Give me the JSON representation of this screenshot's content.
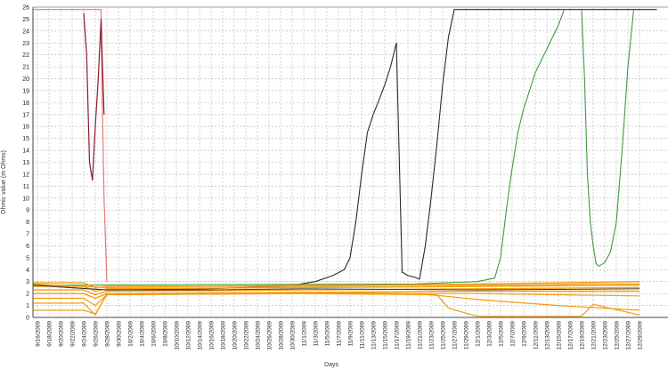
{
  "chart_data": {
    "type": "line",
    "title": "",
    "xlabel": "Days",
    "ylabel": "Ohmic value (m Ohms)",
    "ylim": [
      0,
      26
    ],
    "yticks": [
      0,
      1,
      2,
      3,
      4,
      5,
      6,
      7,
      8,
      9,
      10,
      11,
      12,
      13,
      14,
      15,
      16,
      17,
      18,
      19,
      20,
      21,
      22,
      23,
      24,
      25,
      26
    ],
    "grid": true,
    "legend": "none",
    "x_tick_labels": [
      "9/16/2009",
      "9/18/2009",
      "9/20/2009",
      "9/22/2009",
      "9/24/2009",
      "9/26/2009",
      "9/28/2009",
      "9/30/2009",
      "10/2/2009",
      "10/4/2009",
      "10/6/2009",
      "10/8/2009",
      "10/10/2009",
      "10/12/2009",
      "10/14/2009",
      "10/16/2009",
      "10/18/2009",
      "10/20/2009",
      "10/22/2009",
      "10/24/2009",
      "10/26/2009",
      "10/28/2009",
      "10/30/2009",
      "11/1/2009",
      "11/3/2009",
      "11/5/2009",
      "11/7/2009",
      "11/9/2009",
      "11/11/2009",
      "11/13/2009",
      "11/15/2009",
      "11/17/2009",
      "11/19/2009",
      "11/21/2009",
      "11/23/2009",
      "11/25/2009",
      "11/27/2009",
      "11/29/2009",
      "12/1/2009",
      "12/3/2009",
      "12/5/2009",
      "12/7/2009",
      "12/9/2009",
      "12/11/2009",
      "12/13/2009",
      "12/15/2009",
      "12/17/2009",
      "12/19/2009",
      "12/21/2009",
      "12/23/2009",
      "12/25/2009",
      "12/27/2009",
      "12/29/2009"
    ],
    "series": [
      {
        "color": "#e87878",
        "width": 1.2,
        "x": [
          "2009-09-14",
          "2009-09-27",
          "2009-09-27",
          "2009-09-27.5",
          "2009-09-28"
        ],
        "y": [
          25.8,
          25.8,
          24.0,
          10.0,
          3.0
        ]
      },
      {
        "color": "#8b1a2e",
        "width": 1.2,
        "x": [
          "2009-09-24",
          "2009-09-24.5",
          "2009-09-25",
          "2009-09-25.5",
          "2009-09-26",
          "2009-09-26.5",
          "2009-09-27",
          "2009-09-27.5"
        ],
        "y": [
          25.5,
          22.0,
          13.0,
          11.5,
          16.0,
          20.0,
          25.0,
          17.0
        ]
      },
      {
        "color": "#2b2b2b",
        "width": 1.1,
        "x": [
          "2009-09-14",
          "2009-09-28",
          "2009-10-15",
          "2009-10-29",
          "2009-11-03",
          "2009-11-06",
          "2009-11-08",
          "2009-11-09",
          "2009-11-10",
          "2009-11-11",
          "2009-11-12",
          "2009-11-13",
          "2009-11-14",
          "2009-11-15",
          "2009-11-16",
          "2009-11-17",
          "2009-11-18",
          "2009-11-19",
          "2009-11-20",
          "2009-11-21",
          "2009-11-22",
          "2009-11-23",
          "2009-11-24",
          "2009-11-25",
          "2009-11-26",
          "2009-11-27",
          "2010-01-01"
        ],
        "y": [
          2.7,
          2.3,
          2.4,
          2.6,
          3.0,
          3.5,
          4.0,
          5.0,
          8.0,
          12.0,
          15.5,
          17.0,
          18.2,
          19.5,
          21.0,
          23.0,
          3.8,
          3.5,
          3.4,
          3.2,
          6.0,
          10.0,
          14.5,
          19.5,
          23.5,
          25.8,
          25.8
        ]
      },
      {
        "color": "#3f9b3f",
        "width": 1.1,
        "x": [
          "2009-09-14",
          "2009-11-20",
          "2009-12-01",
          "2009-12-04",
          "2009-12-05",
          "2009-12-06",
          "2009-12-07",
          "2009-12-08",
          "2009-12-09",
          "2009-12-10",
          "2009-12-11",
          "2009-12-12",
          "2009-12-13",
          "2009-12-14",
          "2009-12-15",
          "2009-12-16"
        ],
        "y": [
          2.7,
          2.8,
          3.0,
          3.3,
          5.0,
          9.0,
          12.5,
          15.5,
          17.5,
          19.0,
          20.5,
          21.5,
          22.5,
          23.5,
          24.5,
          25.8
        ]
      },
      {
        "color": "#3f9b3f",
        "width": 1.1,
        "x": [
          "2009-12-19",
          "2009-12-19.5",
          "2009-12-20",
          "2009-12-20.5",
          "2009-12-21",
          "2009-12-21.5",
          "2009-12-22",
          "2009-12-23",
          "2009-12-24",
          "2009-12-25",
          "2009-12-26",
          "2009-12-27",
          "2009-12-28"
        ],
        "y": [
          25.8,
          20.0,
          12.0,
          8.0,
          6.0,
          4.5,
          4.3,
          4.6,
          5.5,
          8.0,
          14.0,
          21.0,
          25.8
        ]
      },
      {
        "color": "#f39c12",
        "width": 1.4,
        "x": [
          "2009-09-14",
          "2009-09-24",
          "2009-09-26",
          "2009-09-28",
          "2009-11-01",
          "2009-12-01",
          "2009-12-29"
        ],
        "y": [
          2.9,
          2.9,
          2.5,
          2.6,
          2.6,
          2.8,
          3.0
        ]
      },
      {
        "color": "#f39c12",
        "width": 1.4,
        "x": [
          "2009-09-14",
          "2009-09-24",
          "2009-09-26",
          "2009-09-28",
          "2009-11-01",
          "2009-12-01",
          "2009-12-29"
        ],
        "y": [
          2.6,
          2.6,
          2.2,
          2.4,
          2.5,
          2.6,
          2.7
        ]
      },
      {
        "color": "#f39c12",
        "width": 1.4,
        "x": [
          "2009-09-14",
          "2009-09-24",
          "2009-09-26",
          "2009-09-28",
          "2009-11-01",
          "2009-12-01",
          "2009-12-29"
        ],
        "y": [
          2.3,
          2.3,
          1.9,
          2.2,
          2.3,
          2.4,
          2.5
        ]
      },
      {
        "color": "#f39c12",
        "width": 1.4,
        "x": [
          "2009-09-14",
          "2009-09-24",
          "2009-09-26",
          "2009-09-28",
          "2009-11-01",
          "2009-12-01",
          "2009-12-29"
        ],
        "y": [
          2.0,
          2.0,
          1.6,
          2.0,
          2.1,
          2.2,
          2.2
        ]
      },
      {
        "color": "#f39c12",
        "width": 1.2,
        "x": [
          "2009-09-14",
          "2009-09-24",
          "2009-09-26",
          "2009-09-28",
          "2009-11-01",
          "2009-12-01",
          "2009-12-29"
        ],
        "y": [
          1.6,
          1.6,
          1.0,
          1.9,
          2.0,
          2.0,
          1.8
        ]
      },
      {
        "color": "#f39c12",
        "width": 1.2,
        "x": [
          "2009-09-14",
          "2009-09-24",
          "2009-09-26",
          "2009-09-28",
          "2009-11-01",
          "2009-11-20",
          "2009-11-25",
          "2009-12-01",
          "2009-12-15",
          "2009-12-29"
        ],
        "y": [
          1.2,
          1.2,
          0.2,
          2.0,
          2.1,
          2.0,
          1.8,
          1.5,
          1.0,
          0.6
        ]
      },
      {
        "color": "#f39c12",
        "width": 1.2,
        "x": [
          "2009-09-14",
          "2009-09-24",
          "2009-09-26",
          "2009-09-28",
          "2009-11-01",
          "2009-11-24",
          "2009-11-26",
          "2009-11-28",
          "2009-12-01",
          "2009-12-19",
          "2009-12-21",
          "2009-12-29"
        ],
        "y": [
          0.6,
          0.6,
          0.3,
          1.9,
          2.0,
          1.9,
          0.8,
          0.5,
          0.1,
          0.1,
          1.1,
          0.2
        ]
      },
      {
        "color": "#f39c12",
        "width": 1.2,
        "x": [
          "2009-09-14",
          "2009-09-28",
          "2009-11-01",
          "2009-12-01",
          "2009-12-21",
          "2009-12-29"
        ],
        "y": [
          2.8,
          2.5,
          2.7,
          2.7,
          2.8,
          2.8
        ]
      },
      {
        "color": "#333333",
        "width": 0.9,
        "x": [
          "2009-09-14",
          "2009-09-28",
          "2009-10-15",
          "2009-11-01",
          "2009-12-01",
          "2009-12-29"
        ],
        "y": [
          2.7,
          2.3,
          2.3,
          2.4,
          2.3,
          2.4
        ]
      }
    ]
  }
}
